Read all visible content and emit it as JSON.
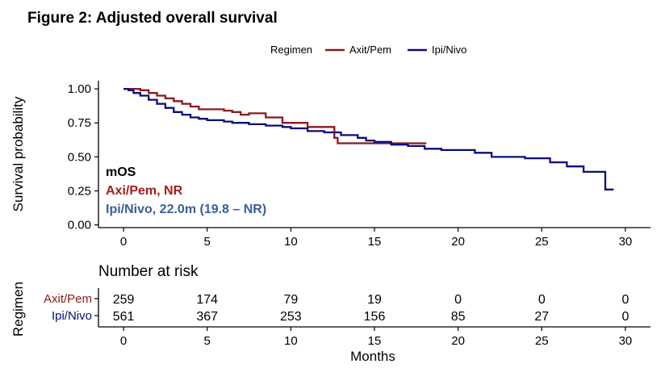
{
  "title": "Figure 2: Adjusted overall survival",
  "colors": {
    "axit_pem": "#8B1A1A",
    "ipi_nivo": "#0B0B7A",
    "annot_axit": "#A61C1C",
    "annot_ipi": "#3A5F9A",
    "black": "#000000"
  },
  "chart_data": {
    "type": "line",
    "step": true,
    "title": "Figure 2: Adjusted overall survival",
    "xlabel": "Months",
    "ylabel": "Survival probability",
    "xlim": [
      -1.5,
      31.5
    ],
    "ylim": [
      -0.02,
      1.06
    ],
    "x_ticks": [
      0,
      5,
      10,
      15,
      20,
      25,
      30
    ],
    "y_ticks": [
      0,
      0.25,
      0.5,
      0.75,
      1.0
    ],
    "y_tick_labels": [
      "0.00",
      "0.25",
      "0.50",
      "0.75",
      "1.00"
    ],
    "grid": false,
    "legend": {
      "title": "Regimen",
      "position": "top",
      "entries": [
        "Axit/Pem",
        "Ipi/Nivo"
      ]
    },
    "series": [
      {
        "name": "Axit/Pem",
        "color": "#8B1A1A",
        "points": [
          [
            0,
            1.0
          ],
          [
            0.5,
            1.0
          ],
          [
            1.0,
            0.99
          ],
          [
            1.5,
            0.97
          ],
          [
            2,
            0.95
          ],
          [
            2.5,
            0.93
          ],
          [
            3,
            0.91
          ],
          [
            3.5,
            0.89
          ],
          [
            4,
            0.87
          ],
          [
            4.5,
            0.85
          ],
          [
            5,
            0.85
          ],
          [
            6,
            0.84
          ],
          [
            6.5,
            0.83
          ],
          [
            7,
            0.81
          ],
          [
            7.5,
            0.82
          ],
          [
            8.5,
            0.79
          ],
          [
            9,
            0.79
          ],
          [
            9.5,
            0.75
          ],
          [
            10.5,
            0.75
          ],
          [
            11,
            0.72
          ],
          [
            12.5,
            0.72
          ],
          [
            12.6,
            0.64
          ],
          [
            12.8,
            0.6
          ],
          [
            14,
            0.6
          ],
          [
            15,
            0.6
          ],
          [
            16,
            0.6
          ],
          [
            17,
            0.6
          ],
          [
            18.1,
            0.6
          ]
        ]
      },
      {
        "name": "Ipi/Nivo",
        "color": "#0B0B7A",
        "points": [
          [
            0,
            1.0
          ],
          [
            0.3,
            0.99
          ],
          [
            0.6,
            0.97
          ],
          [
            1,
            0.95
          ],
          [
            1.5,
            0.92
          ],
          [
            2,
            0.89
          ],
          [
            2.5,
            0.86
          ],
          [
            3,
            0.83
          ],
          [
            3.5,
            0.81
          ],
          [
            4,
            0.79
          ],
          [
            4.5,
            0.78
          ],
          [
            5,
            0.77
          ],
          [
            6,
            0.76
          ],
          [
            6.5,
            0.75
          ],
          [
            7.5,
            0.74
          ],
          [
            8.5,
            0.73
          ],
          [
            9.5,
            0.72
          ],
          [
            10,
            0.71
          ],
          [
            11,
            0.69
          ],
          [
            12,
            0.68
          ],
          [
            13,
            0.66
          ],
          [
            14,
            0.64
          ],
          [
            14.5,
            0.62
          ],
          [
            15,
            0.61
          ],
          [
            16,
            0.59
          ],
          [
            17,
            0.58
          ],
          [
            18,
            0.56
          ],
          [
            19,
            0.55
          ],
          [
            20,
            0.55
          ],
          [
            21,
            0.53
          ],
          [
            22,
            0.5
          ],
          [
            24,
            0.49
          ],
          [
            25.5,
            0.46
          ],
          [
            26.5,
            0.43
          ],
          [
            27.5,
            0.39
          ],
          [
            28.7,
            0.39
          ],
          [
            28.8,
            0.26
          ],
          [
            29.3,
            0.26
          ]
        ]
      }
    ],
    "annotations": {
      "header": "mOS",
      "axit_pem": "Axi/Pem, NR",
      "ipi_nivo": "Ipi/Nivo, 22.0m (19.8 – NR)"
    },
    "risk_table": {
      "title": "Number at risk",
      "ylabel": "Regimen",
      "xlabel": "Months",
      "times": [
        0,
        5,
        10,
        15,
        20,
        25,
        30
      ],
      "rows": [
        {
          "label": "Axit/Pem",
          "color": "#8B1A1A",
          "values": [
            259,
            174,
            79,
            19,
            0,
            0,
            0
          ]
        },
        {
          "label": "Ipi/Nivo",
          "color": "#0B0B7A",
          "values": [
            561,
            367,
            253,
            156,
            85,
            27,
            0
          ]
        }
      ]
    }
  }
}
